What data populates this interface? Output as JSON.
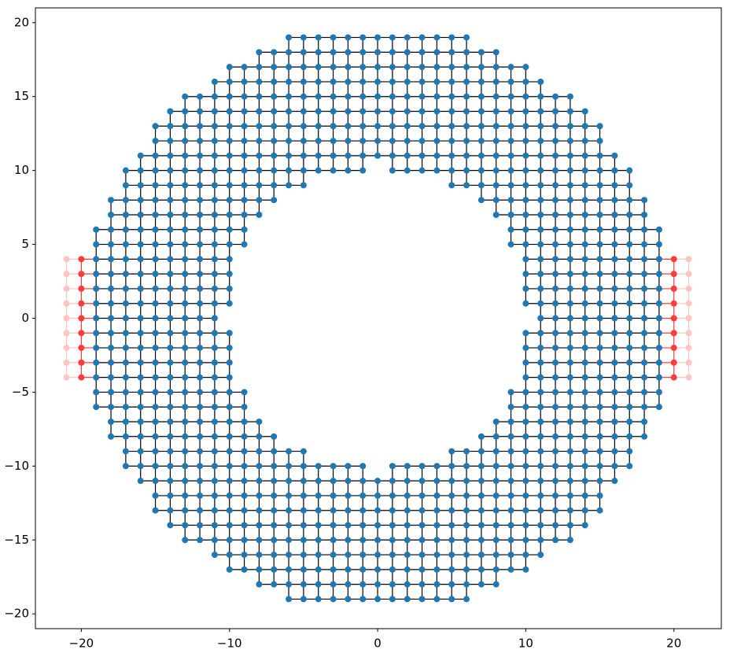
{
  "chart_data": {
    "type": "lattice",
    "xlim": [
      -23.1,
      23.2
    ],
    "ylim": [
      -21,
      21
    ],
    "xticks": [
      {
        "value": -20,
        "label": "−20"
      },
      {
        "value": -10,
        "label": "−10"
      },
      0,
      10,
      20
    ],
    "yticks": [
      {
        "value": -20,
        "label": "−20"
      },
      {
        "value": -15,
        "label": "−15"
      },
      {
        "value": -10,
        "label": "−10"
      },
      {
        "value": -5,
        "label": "−5"
      },
      0,
      5,
      10,
      15,
      20
    ],
    "node_color": "#1f77b4",
    "edge_color": "#000000",
    "rows": [
      {
        "y": 19,
        "segments": [
          [
            -6,
            6
          ]
        ]
      },
      {
        "y": 18,
        "segments": [
          [
            -8,
            8
          ]
        ]
      },
      {
        "y": 17,
        "segments": [
          [
            -10,
            10
          ]
        ]
      },
      {
        "y": 16,
        "segments": [
          [
            -11,
            11
          ]
        ]
      },
      {
        "y": 15,
        "segments": [
          [
            -13,
            13
          ]
        ]
      },
      {
        "y": 14,
        "segments": [
          [
            -14,
            14
          ]
        ]
      },
      {
        "y": 13,
        "segments": [
          [
            -15,
            15
          ]
        ]
      },
      {
        "y": 12,
        "segments": [
          [
            -15,
            15
          ]
        ]
      },
      {
        "y": 11,
        "segments": [
          [
            -16,
            16
          ]
        ]
      },
      {
        "y": 10,
        "segments": [
          [
            -17,
            -1
          ],
          [
            1,
            17
          ]
        ]
      },
      {
        "y": 9,
        "segments": [
          [
            -17,
            -5
          ],
          [
            5,
            17
          ]
        ]
      },
      {
        "y": 8,
        "segments": [
          [
            -18,
            -7
          ],
          [
            7,
            18
          ]
        ]
      },
      {
        "y": 7,
        "segments": [
          [
            -18,
            -8
          ],
          [
            8,
            18
          ]
        ]
      },
      {
        "y": 6,
        "segments": [
          [
            -19,
            -9
          ],
          [
            9,
            19
          ]
        ]
      },
      {
        "y": 5,
        "segments": [
          [
            -19,
            -9
          ],
          [
            9,
            19
          ]
        ]
      },
      {
        "y": 4,
        "segments": [
          [
            -19,
            -10
          ],
          [
            10,
            19
          ]
        ]
      },
      {
        "y": 3,
        "segments": [
          [
            -19,
            -10
          ],
          [
            10,
            19
          ]
        ]
      },
      {
        "y": 2,
        "segments": [
          [
            -19,
            -10
          ],
          [
            10,
            19
          ]
        ]
      },
      {
        "y": 1,
        "segments": [
          [
            -19,
            -10
          ],
          [
            10,
            19
          ]
        ]
      },
      {
        "y": 0,
        "segments": [
          [
            -19,
            -11
          ],
          [
            11,
            19
          ]
        ]
      },
      {
        "y": -1,
        "segments": [
          [
            -19,
            -10
          ],
          [
            10,
            19
          ]
        ]
      },
      {
        "y": -2,
        "segments": [
          [
            -19,
            -10
          ],
          [
            10,
            19
          ]
        ]
      },
      {
        "y": -3,
        "segments": [
          [
            -19,
            -10
          ],
          [
            10,
            19
          ]
        ]
      },
      {
        "y": -4,
        "segments": [
          [
            -19,
            -10
          ],
          [
            10,
            19
          ]
        ]
      },
      {
        "y": -5,
        "segments": [
          [
            -19,
            -9
          ],
          [
            9,
            19
          ]
        ]
      },
      {
        "y": -6,
        "segments": [
          [
            -19,
            -9
          ],
          [
            9,
            19
          ]
        ]
      },
      {
        "y": -7,
        "segments": [
          [
            -18,
            -8
          ],
          [
            8,
            18
          ]
        ]
      },
      {
        "y": -8,
        "segments": [
          [
            -18,
            -7
          ],
          [
            7,
            18
          ]
        ]
      },
      {
        "y": -9,
        "segments": [
          [
            -17,
            -5
          ],
          [
            5,
            17
          ]
        ]
      },
      {
        "y": -10,
        "segments": [
          [
            -17,
            -1
          ],
          [
            1,
            17
          ]
        ]
      },
      {
        "y": -11,
        "segments": [
          [
            -16,
            16
          ]
        ]
      },
      {
        "y": -12,
        "segments": [
          [
            -15,
            15
          ]
        ]
      },
      {
        "y": -13,
        "segments": [
          [
            -15,
            15
          ]
        ]
      },
      {
        "y": -14,
        "segments": [
          [
            -14,
            14
          ]
        ]
      },
      {
        "y": -15,
        "segments": [
          [
            -13,
            13
          ]
        ]
      },
      {
        "y": -16,
        "segments": [
          [
            -11,
            11
          ]
        ]
      },
      {
        "y": -17,
        "segments": [
          [
            -10,
            10
          ]
        ]
      },
      {
        "y": -18,
        "segments": [
          [
            -8,
            8
          ]
        ]
      },
      {
        "y": -19,
        "segments": [
          [
            -6,
            6
          ]
        ]
      }
    ],
    "leads": [
      {
        "columns": [
          -21,
          -20
        ],
        "colors": [
          "#ffc4c4",
          "#ff3b3b"
        ],
        "y_range": [
          -4,
          4
        ],
        "attach": -19
      },
      {
        "columns": [
          21,
          20
        ],
        "colors": [
          "#ffc4c4",
          "#ff3b3b"
        ],
        "y_range": [
          -4,
          4
        ],
        "attach": 19
      }
    ]
  }
}
